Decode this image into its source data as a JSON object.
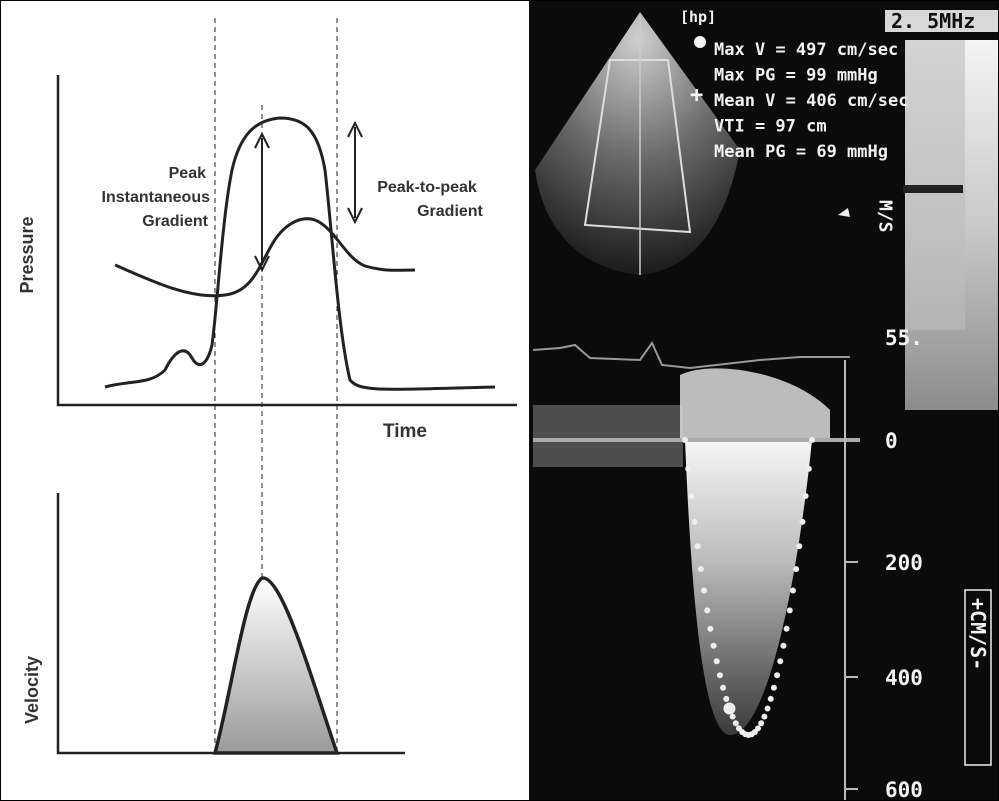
{
  "diagram": {
    "labels": {
      "pressure": "Pressure",
      "time": "Time",
      "velocity": "Velocity",
      "peak_instantaneous_gradient": [
        "Peak",
        "Instantaneous",
        "Gradient"
      ],
      "peak_to_peak_gradient": [
        "Peak-to-peak",
        "Gradient"
      ]
    }
  },
  "echo": {
    "probe_tag": "[hp]",
    "frequency": "2. 5MHz",
    "measurements": [
      "Max V = 497 cm/sec",
      "Max PG = 99 mmHg",
      "Mean V = 406 cm/sec",
      "VTI = 97 cm",
      "Mean PG = 69 mmHg"
    ],
    "color_bar_unit": "M/S",
    "scale_labels": [
      "55.",
      "0",
      "200",
      "400",
      "600"
    ],
    "scale_unit": "+CM/S-"
  }
}
